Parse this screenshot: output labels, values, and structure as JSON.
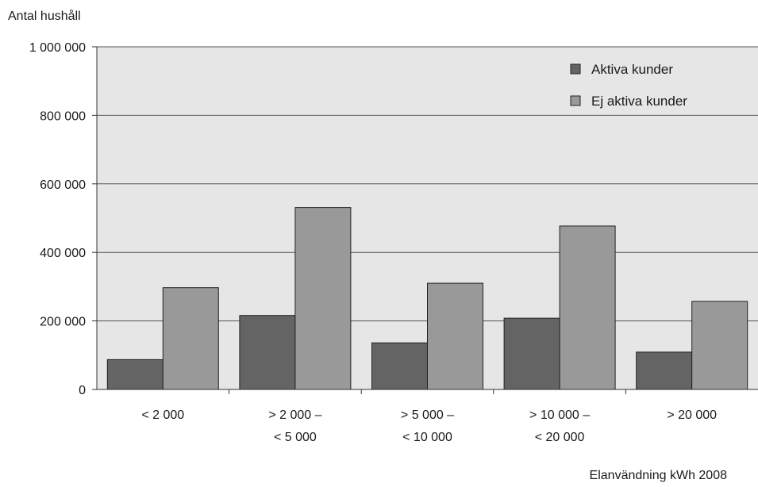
{
  "chart_data": {
    "type": "bar",
    "ylabel": "Antal hushåll",
    "xlabel": "Elanvändning kWh 2008",
    "ylim": [
      0,
      1000000
    ],
    "yticks": [
      {
        "value": 0,
        "label": "0"
      },
      {
        "value": 200000,
        "label": "200 000"
      },
      {
        "value": 400000,
        "label": "400 000"
      },
      {
        "value": 600000,
        "label": "600 000"
      },
      {
        "value": 800000,
        "label": "800 000"
      },
      {
        "value": 1000000,
        "label": "1 000 000"
      }
    ],
    "categories": [
      [
        "< 2 000"
      ],
      [
        "> 2 000 –",
        "< 5 000"
      ],
      [
        "> 5 000 –",
        "< 10 000"
      ],
      [
        "> 10 000 –",
        "< 20 000"
      ],
      [
        "> 20 000"
      ]
    ],
    "series": [
      {
        "name": "Aktiva kunder",
        "color": "#646464",
        "values": [
          87000,
          216000,
          136000,
          208000,
          109000
        ]
      },
      {
        "name": "Ej aktiva kunder",
        "color": "#999999",
        "values": [
          297000,
          531000,
          310000,
          477000,
          257000
        ]
      }
    ],
    "plot_background": "#e6e6e6",
    "grid": true,
    "legend_position": "top-right"
  }
}
